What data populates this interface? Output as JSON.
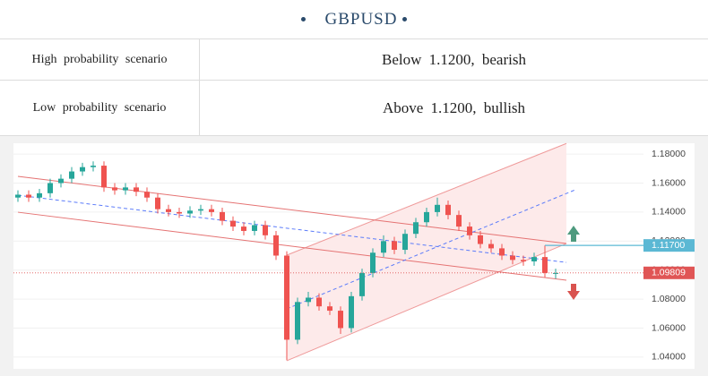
{
  "header": {
    "title": "GBPUSD"
  },
  "table": {
    "rows": [
      [
        "High probability scenario",
        "Below 1.1200, bearish"
      ],
      [
        "Low probability scenario",
        "Above 1.1200, bullish"
      ]
    ]
  },
  "chart_data": {
    "type": "candlestick",
    "candles": [
      [
        1.15,
        1.155,
        1.147,
        1.152
      ],
      [
        1.152,
        1.155,
        1.147,
        1.15
      ],
      [
        1.15,
        1.156,
        1.147,
        1.153
      ],
      [
        1.153,
        1.163,
        1.15,
        1.16
      ],
      [
        1.16,
        1.166,
        1.157,
        1.163
      ],
      [
        1.163,
        1.171,
        1.16,
        1.168
      ],
      [
        1.168,
        1.174,
        1.165,
        1.171
      ],
      [
        1.171,
        1.175,
        1.168,
        1.172
      ],
      [
        1.172,
        1.175,
        1.154,
        1.157
      ],
      [
        1.157,
        1.16,
        1.152,
        1.155
      ],
      [
        1.155,
        1.16,
        1.152,
        1.157
      ],
      [
        1.157,
        1.16,
        1.151,
        1.154
      ],
      [
        1.154,
        1.157,
        1.147,
        1.15
      ],
      [
        1.15,
        1.153,
        1.139,
        1.142
      ],
      [
        1.142,
        1.145,
        1.137,
        1.14
      ],
      [
        1.14,
        1.143,
        1.136,
        1.139
      ],
      [
        1.139,
        1.144,
        1.136,
        1.141
      ],
      [
        1.141,
        1.145,
        1.138,
        1.142
      ],
      [
        1.142,
        1.145,
        1.137,
        1.14
      ],
      [
        1.14,
        1.143,
        1.131,
        1.134
      ],
      [
        1.134,
        1.137,
        1.127,
        1.13
      ],
      [
        1.13,
        1.133,
        1.124,
        1.127
      ],
      [
        1.127,
        1.134,
        1.124,
        1.131
      ],
      [
        1.131,
        1.134,
        1.121,
        1.124
      ],
      [
        1.124,
        1.127,
        1.107,
        1.11
      ],
      [
        1.11,
        1.113,
        1.038,
        1.052
      ],
      [
        1.052,
        1.081,
        1.049,
        1.078
      ],
      [
        1.078,
        1.085,
        1.075,
        1.081
      ],
      [
        1.081,
        1.084,
        1.072,
        1.075
      ],
      [
        1.075,
        1.078,
        1.069,
        1.072
      ],
      [
        1.072,
        1.075,
        1.056,
        1.06
      ],
      [
        1.06,
        1.085,
        1.057,
        1.082
      ],
      [
        1.082,
        1.101,
        1.079,
        1.098
      ],
      [
        1.098,
        1.115,
        1.095,
        1.112
      ],
      [
        1.112,
        1.124,
        1.109,
        1.12
      ],
      [
        1.12,
        1.123,
        1.111,
        1.114
      ],
      [
        1.114,
        1.128,
        1.111,
        1.125
      ],
      [
        1.125,
        1.136,
        1.122,
        1.133
      ],
      [
        1.133,
        1.143,
        1.13,
        1.14
      ],
      [
        1.14,
        1.15,
        1.137,
        1.145
      ],
      [
        1.145,
        1.148,
        1.135,
        1.138
      ],
      [
        1.138,
        1.141,
        1.127,
        1.13
      ],
      [
        1.13,
        1.133,
        1.121,
        1.124
      ],
      [
        1.124,
        1.127,
        1.115,
        1.118
      ],
      [
        1.118,
        1.121,
        1.112,
        1.115
      ],
      [
        1.115,
        1.118,
        1.107,
        1.11
      ],
      [
        1.11,
        1.113,
        1.104,
        1.107
      ],
      [
        1.107,
        1.11,
        1.103,
        1.106
      ],
      [
        1.106,
        1.112,
        1.103,
        1.109
      ],
      [
        1.109,
        1.117,
        1.095,
        1.098
      ],
      [
        1.098,
        1.101,
        1.094,
        1.098
      ]
    ],
    "up_color": "#26a69a",
    "down_color": "#ef5350",
    "ylim": [
      1.035,
      1.185
    ],
    "yticks": [
      {
        "value": 1.04,
        "label": "1.04000"
      },
      {
        "value": 1.06,
        "label": "1.06000"
      },
      {
        "value": 1.08,
        "label": "1.08000"
      },
      {
        "value": 1.1,
        "label": "1.10000"
      },
      {
        "value": 1.12,
        "label": "1.12000"
      },
      {
        "value": 1.14,
        "label": "1.14000"
      },
      {
        "value": 1.16,
        "label": "1.16000"
      },
      {
        "value": 1.18,
        "label": "1.18000"
      }
    ],
    "grid": true,
    "band": {
      "x": [
        25,
        51
      ],
      "upper": [
        1.1103,
        1.1873
      ],
      "lower": [
        1.0375,
        1.1183
      ],
      "color": "#fdeaea",
      "edge_color": "#ef9a9a"
    },
    "lines": [
      {
        "x": [
          0,
          51
        ],
        "y": [
          1.1646,
          1.1183
        ],
        "color": "#e57373",
        "dashed": false
      },
      {
        "x": [
          0,
          51
        ],
        "y": [
          1.1399,
          1.093
        ],
        "color": "#e57373",
        "dashed": false
      },
      {
        "x": [
          0,
          51
        ],
        "y": [
          1.1516,
          1.1053
        ],
        "color": "#5c7cfa",
        "dashed": true
      },
      {
        "x": [
          25,
          51.8
        ],
        "y": [
          1.0733,
          1.1553
        ],
        "color": "#5c7cfa",
        "dashed": true
      }
    ],
    "levels": [
      {
        "value": 1.117,
        "label": "1.11700",
        "color": "#5bb8d4",
        "dotted": false
      },
      {
        "value": 1.09809,
        "label": "1.09809",
        "color": "#e05555",
        "dotted": true
      }
    ]
  }
}
